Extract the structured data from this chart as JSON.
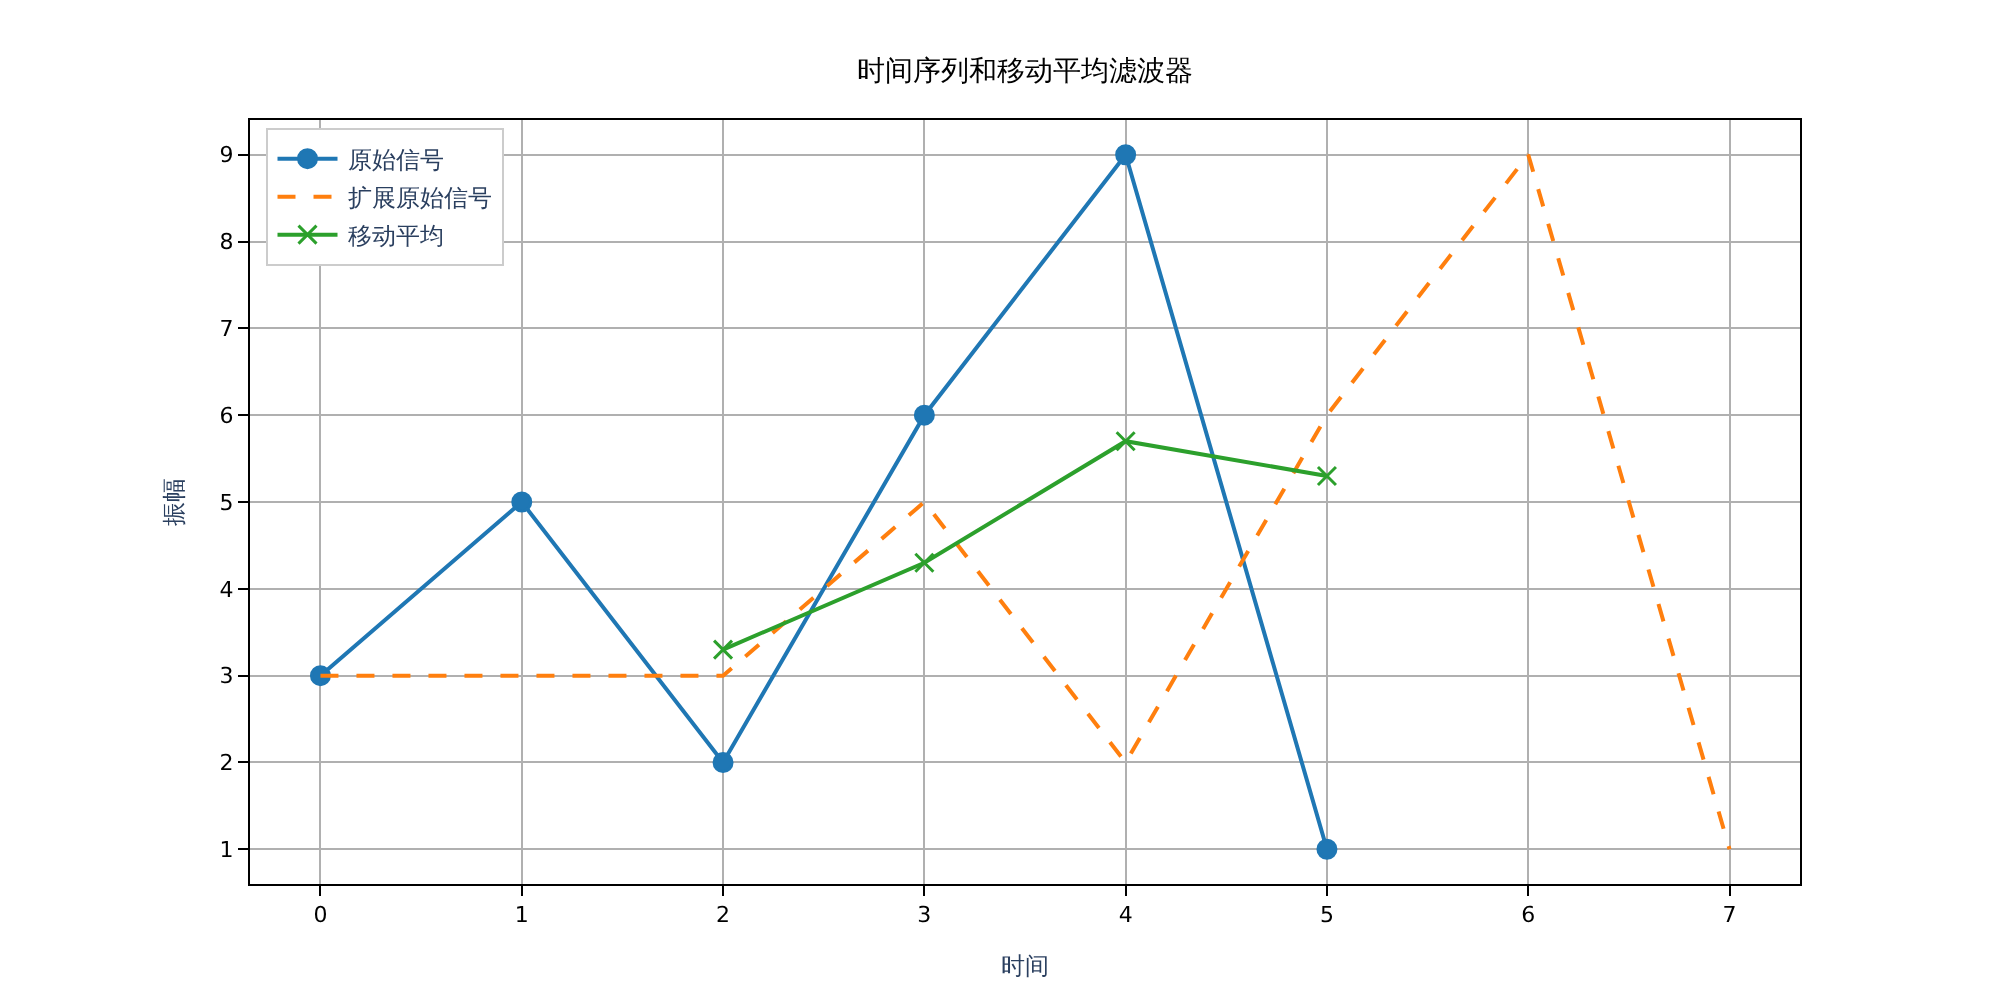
{
  "chart_data": {
    "type": "line",
    "title": "时间序列和移动平均滤波器",
    "xlabel": "时间",
    "ylabel": "振幅",
    "xlim": [
      -0.35,
      7.35
    ],
    "xticks": [
      0,
      1,
      2,
      3,
      4,
      5,
      6,
      7
    ],
    "ylim": [
      0.6,
      9.4
    ],
    "yticks": [
      1,
      2,
      3,
      4,
      5,
      6,
      7,
      8,
      9
    ],
    "grid": true,
    "legend": "top left",
    "series": [
      {
        "name": "原始信号",
        "color": "#1f77b4",
        "x": [
          0,
          1,
          2,
          3,
          4,
          5
        ],
        "values": [
          3,
          5,
          2,
          6,
          9,
          1
        ],
        "marker": "circle",
        "line_style": "solid"
      },
      {
        "name": "扩展原始信号",
        "color": "#ff7f0e",
        "x": [
          0,
          1,
          2,
          3,
          4,
          5,
          6,
          7
        ],
        "values": [
          3,
          3,
          3,
          5,
          2,
          6,
          9,
          1
        ],
        "marker": "none",
        "line_style": "dashed"
      },
      {
        "name": "移动平均",
        "color": "#2ca02c",
        "x": [
          2,
          3,
          4,
          5
        ],
        "values": [
          3.3,
          4.3,
          5.7,
          5.3
        ],
        "marker": "cross",
        "line_style": "solid"
      }
    ]
  }
}
